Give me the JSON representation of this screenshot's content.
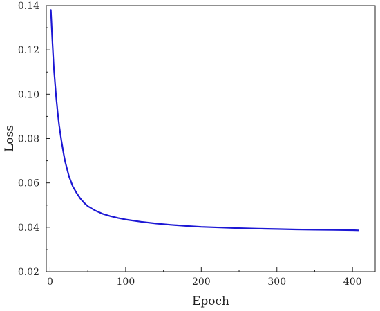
{
  "chart_data": {
    "type": "line",
    "xlabel": "Epoch",
    "ylabel": "Loss",
    "xlim": [
      -5,
      430
    ],
    "ylim": [
      0.02,
      0.14
    ],
    "xticks": [
      0,
      100,
      200,
      300,
      400
    ],
    "xtick_labels": [
      "0",
      "100",
      "200",
      "300",
      "400"
    ],
    "yticks": [
      0.02,
      0.04,
      0.06,
      0.08,
      0.1,
      0.12,
      0.14
    ],
    "ytick_labels": [
      "0.02",
      "0.04",
      "0.06",
      "0.08",
      "0.10",
      "0.12",
      "0.14"
    ],
    "grid": false,
    "series": [
      {
        "color": "#1c17d4",
        "x": [
          1,
          3,
          5,
          8,
          10,
          12,
          15,
          18,
          20,
          25,
          30,
          35,
          40,
          45,
          50,
          60,
          70,
          80,
          90,
          100,
          120,
          140,
          160,
          180,
          200,
          225,
          250,
          275,
          300,
          325,
          350,
          375,
          400,
          408
        ],
        "y": [
          0.138,
          0.124,
          0.112,
          0.099,
          0.092,
          0.086,
          0.079,
          0.073,
          0.0695,
          0.063,
          0.0585,
          0.0555,
          0.053,
          0.051,
          0.0495,
          0.0475,
          0.046,
          0.045,
          0.0442,
          0.0435,
          0.0425,
          0.0417,
          0.0411,
          0.0406,
          0.0402,
          0.0399,
          0.0396,
          0.0394,
          0.0392,
          0.039,
          0.0389,
          0.0388,
          0.0387,
          0.0386
        ]
      }
    ]
  }
}
